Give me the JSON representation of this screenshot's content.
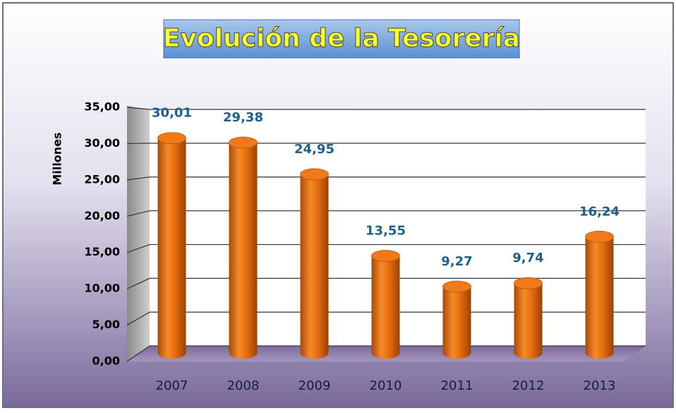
{
  "chart_data": {
    "type": "bar",
    "title": "Evolución de la Tesorería",
    "ylabel": "Millones",
    "categories": [
      "2007",
      "2008",
      "2009",
      "2010",
      "2011",
      "2012",
      "2013"
    ],
    "values": [
      30.01,
      29.38,
      24.95,
      13.55,
      9.27,
      9.74,
      16.24
    ],
    "value_labels": [
      "30,01",
      "29,38",
      "24,95",
      "13,55",
      "9,27",
      "9,74",
      "16,24"
    ],
    "color": "#e8700f",
    "ylim": [
      0,
      35
    ],
    "yticks": [
      {
        "value": 0,
        "label": "0,00"
      },
      {
        "value": 5,
        "label": "5,00"
      },
      {
        "value": 10,
        "label": "10,00"
      },
      {
        "value": 15,
        "label": "15,00"
      },
      {
        "value": 20,
        "label": "20,00"
      },
      {
        "value": 25,
        "label": "25,00"
      },
      {
        "value": 30,
        "label": "30,00"
      },
      {
        "value": 35,
        "label": "35,00"
      }
    ],
    "grid": true
  }
}
